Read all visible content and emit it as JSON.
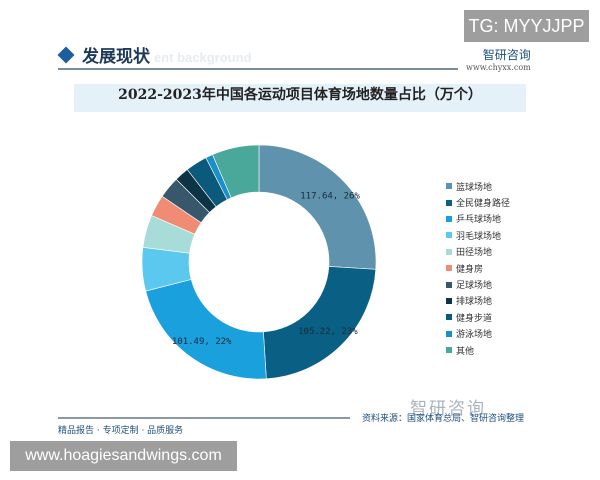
{
  "watermark_top": "TG: MYYJJPP",
  "watermark_bottom": "www.hoagiesandwings.com",
  "header": {
    "title": "发展现状",
    "subtitle": "ent background"
  },
  "brand": {
    "name": "智研咨询",
    "url": "www.chyxx.com"
  },
  "footer": {
    "source": "资料来源：国家体育总局、智研咨询整理",
    "slogan": "精品报告 · 专项定制 · 品质服务",
    "logo": "智研咨询"
  },
  "chart_data": {
    "type": "pie",
    "donut": true,
    "title": "2022-2023年中国各运动项目体育场地数量占比（万个）",
    "legend_position": "right",
    "slices": [
      {
        "name": "篮球场地",
        "value": 117.64,
        "percent": 26,
        "label": "117.64, 26%",
        "color": "#5f93ad"
      },
      {
        "name": "全民健身路径",
        "value": 105.22,
        "percent": 23,
        "label": "105.22, 23%",
        "color": "#0a5f84"
      },
      {
        "name": "乒乓球场地",
        "value": 101.49,
        "percent": 22,
        "label": "101.49, 22%",
        "color": "#1aa0dc"
      },
      {
        "name": "羽毛球场地",
        "value": 27,
        "percent": 6,
        "label": "",
        "color": "#5bc8f0"
      },
      {
        "name": "田径场地",
        "value": 20,
        "percent": 4.5,
        "label": "",
        "color": "#a8dcd8"
      },
      {
        "name": "健身房",
        "value": 14,
        "percent": 3,
        "label": "",
        "color": "#f08c74"
      },
      {
        "name": "足球场地",
        "value": 14,
        "percent": 3,
        "label": "",
        "color": "#37586a"
      },
      {
        "name": "排球场地",
        "value": 9,
        "percent": 2,
        "label": "",
        "color": "#0c3346"
      },
      {
        "name": "健身步道",
        "value": 14,
        "percent": 3,
        "label": "",
        "color": "#0b5a7c"
      },
      {
        "name": "游泳场地",
        "value": 4.5,
        "percent": 1,
        "label": "",
        "color": "#1a90c8"
      },
      {
        "name": "其他",
        "value": 29,
        "percent": 6.5,
        "label": "",
        "color": "#4aa89a"
      }
    ]
  }
}
